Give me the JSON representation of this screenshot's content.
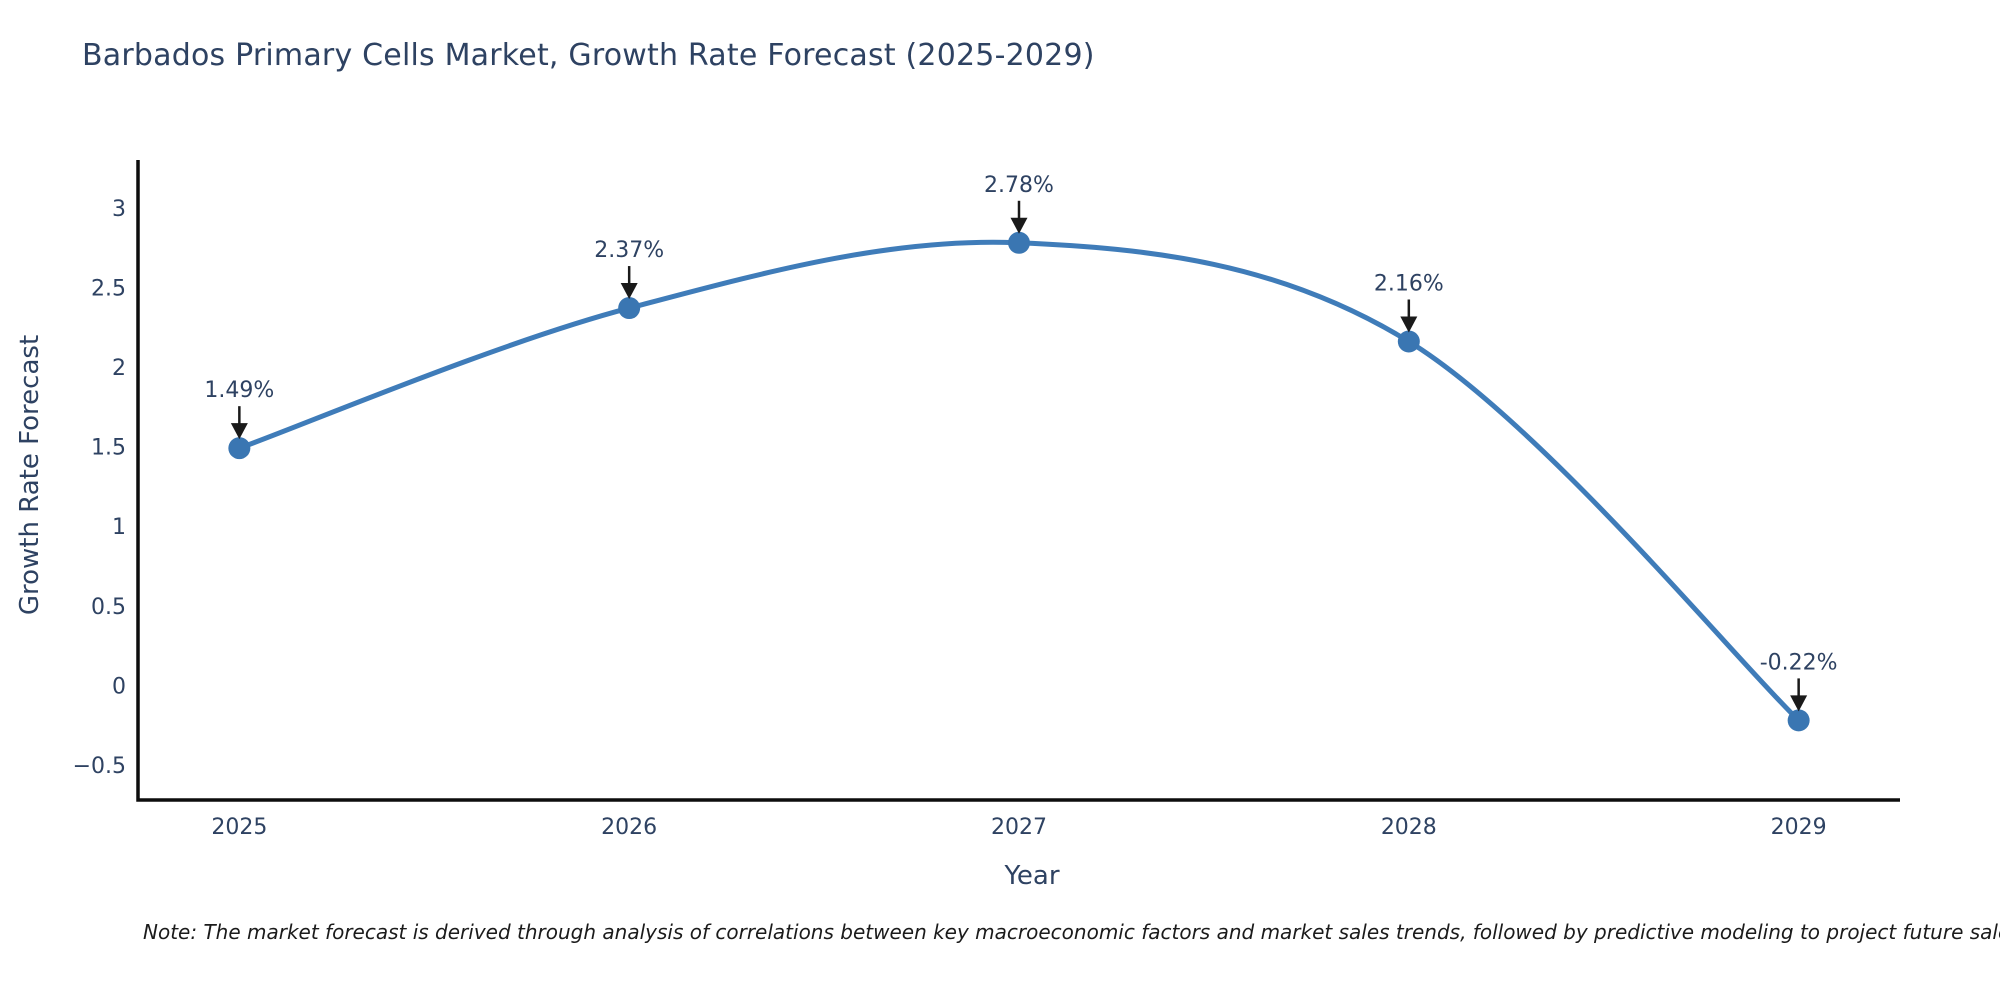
{
  "title": "Barbados Primary Cells Market, Growth Rate Forecast (2025-2029)",
  "note": "Note: The market forecast is derived through analysis of correlations between key macroeconomic factors and market sales trends, followed by predictive modeling to project future sales",
  "chart_data": {
    "type": "line",
    "title": "Barbados Primary Cells Market, Growth Rate Forecast (2025-2029)",
    "xlabel": "Year",
    "ylabel": "Growth Rate Forecast",
    "x": [
      2025,
      2026,
      2027,
      2028,
      2029
    ],
    "series": [
      {
        "name": "Growth Rate Forecast",
        "values": [
          1.49,
          2.37,
          2.78,
          2.16,
          -0.22
        ],
        "point_labels": [
          "1.49%",
          "2.37%",
          "2.78%",
          "2.16%",
          "-0.22%"
        ]
      }
    ],
    "line_shape": "spline",
    "grid": false,
    "legend_position": "none",
    "xlim": [
      2024.74,
      2029.26
    ],
    "ylim": [
      -0.72,
      3.3
    ],
    "xtick_labels": [
      "2025",
      "2026",
      "2027",
      "2028",
      "2029"
    ],
    "ytick_values": [
      3,
      2.5,
      2,
      1.5,
      1,
      0.5,
      0,
      -0.5
    ],
    "ytick_labels": [
      "3",
      "2.5",
      "2",
      "1.5",
      "1",
      "0.5",
      "0",
      "−0.5"
    ],
    "colors": {
      "line": "#3f7cb9",
      "marker": "#3a76b2",
      "arrow": "#1a1a1a",
      "text": "#2e4262",
      "axis": "#0d0d0d"
    }
  }
}
